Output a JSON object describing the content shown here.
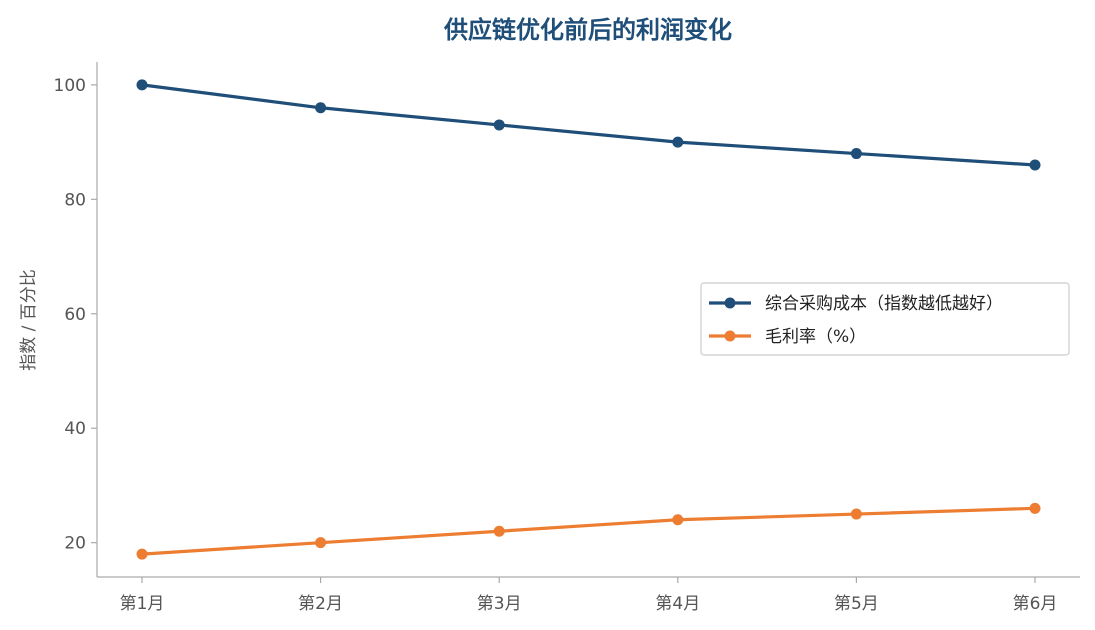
{
  "chart_data": {
    "type": "line",
    "title": "供应链优化前后的利润变化",
    "xlabel": "",
    "ylabel": "指数 / 百分比",
    "categories": [
      "第1月",
      "第2月",
      "第3月",
      "第4月",
      "第5月",
      "第6月"
    ],
    "yticks": [
      20,
      40,
      60,
      80,
      100
    ],
    "ylim": [
      14,
      104
    ],
    "grid": false,
    "legend_position": "center-right",
    "series": [
      {
        "name": "综合采购成本（指数越低越好）",
        "color": "#1f4e79",
        "values": [
          100,
          96,
          93,
          90,
          88,
          86
        ]
      },
      {
        "name": "毛利率（%）",
        "color": "#ed7d31",
        "values": [
          18,
          20,
          22,
          24,
          25,
          26
        ]
      }
    ]
  }
}
